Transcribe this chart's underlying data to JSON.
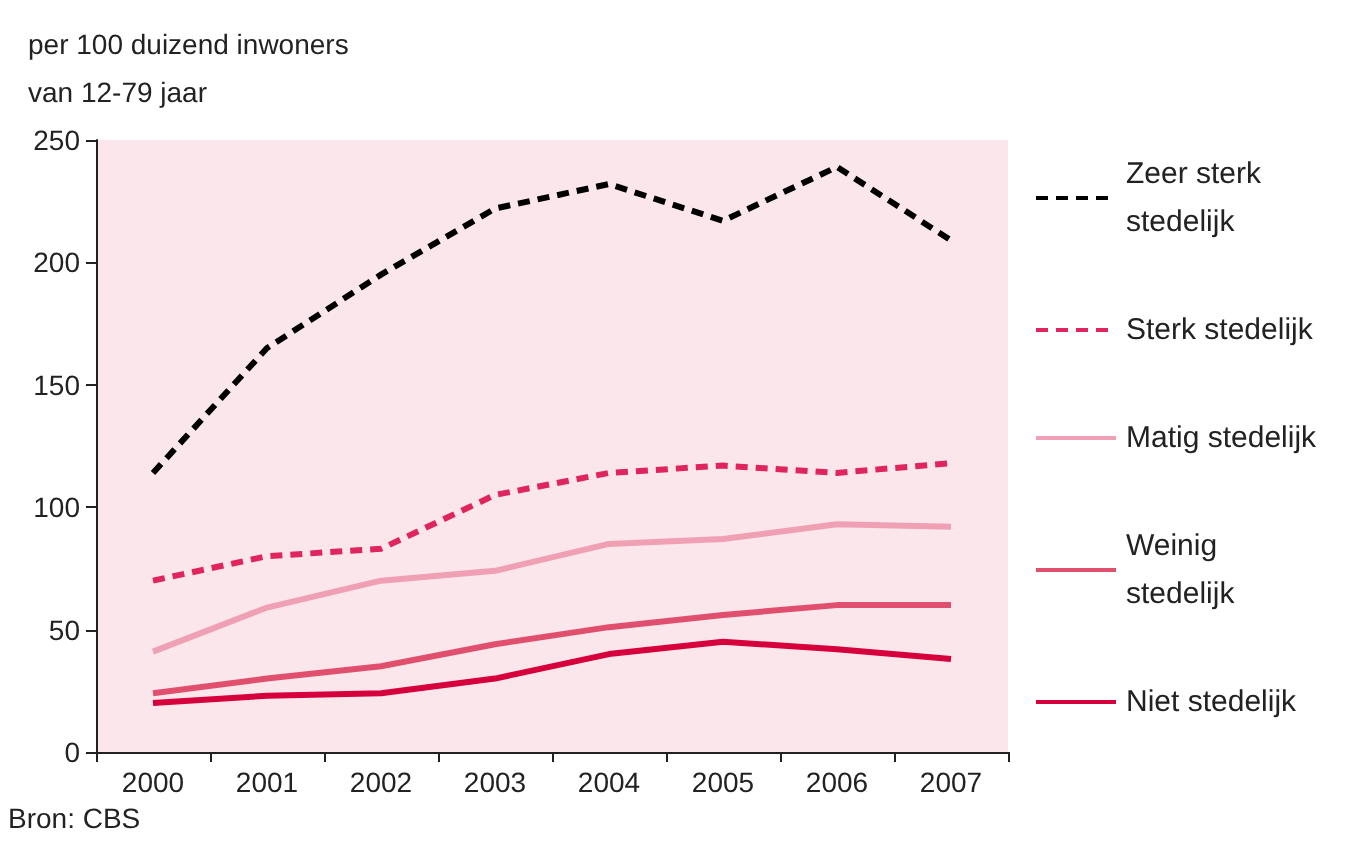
{
  "chart_data": {
    "type": "line",
    "ylabel": "per 100 duizend inwoners van 12-79 jaar",
    "categories": [
      "2000",
      "2001",
      "2002",
      "2003",
      "2004",
      "2005",
      "2006",
      "2007"
    ],
    "series": [
      {
        "name": "Zeer sterk stedelijk",
        "color": "#000000",
        "line_style": "dashed",
        "values": [
          114,
          165,
          195,
          222,
          232,
          217,
          239,
          209
        ]
      },
      {
        "name": "Sterk stedelijk",
        "color": "#e0245e",
        "line_style": "dashed",
        "values": [
          70,
          80,
          83,
          105,
          114,
          117,
          114,
          118
        ]
      },
      {
        "name": "Matig stedelijk",
        "color": "#f0a0b4",
        "line_style": "solid",
        "values": [
          41,
          59,
          70,
          74,
          85,
          87,
          93,
          92
        ]
      },
      {
        "name": "Weinig stedelijk",
        "color": "#e0506e",
        "line_style": "solid",
        "values": [
          24,
          30,
          35,
          44,
          51,
          56,
          60,
          60
        ]
      },
      {
        "name": "Niet stedelijk",
        "color": "#d6003c",
        "line_style": "solid",
        "values": [
          20,
          23,
          24,
          30,
          40,
          45,
          42,
          38
        ]
      }
    ],
    "ylim": [
      0,
      250
    ],
    "yticks": [
      0,
      50,
      100,
      150,
      200,
      250
    ],
    "grid": false,
    "legend": "right",
    "marker": "none",
    "annotations": [
      "Bron: CBS"
    ]
  }
}
